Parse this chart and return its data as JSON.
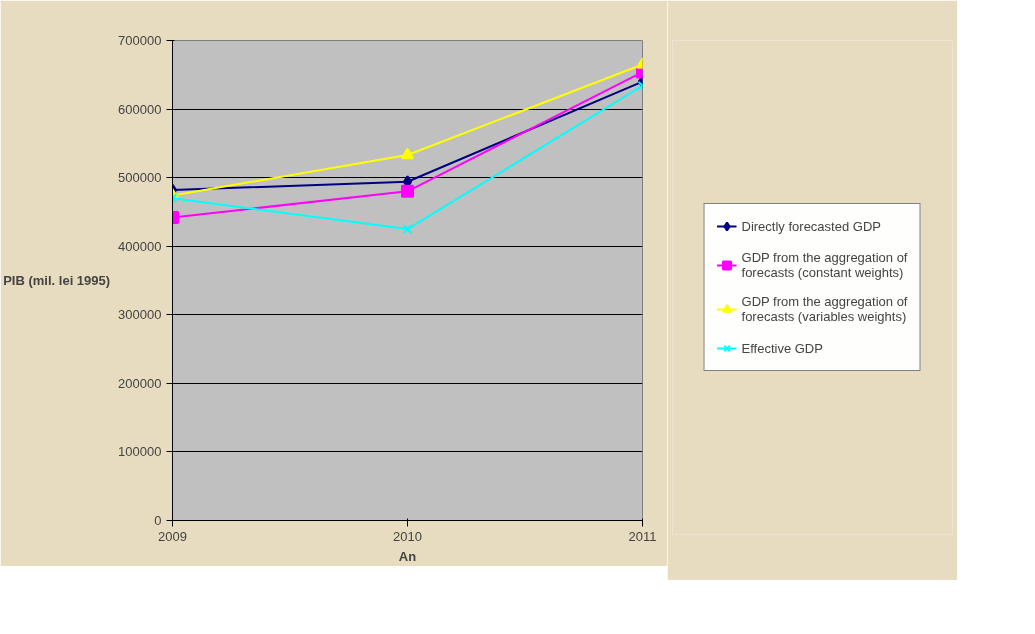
{
  "chart_data": {
    "type": "line",
    "xlabel": "An",
    "ylabel": "PIB (mil. lei 1995)",
    "x": [
      2009,
      2010,
      2011
    ],
    "xlim": [
      2009,
      2011
    ],
    "xticks": [
      2009,
      2010,
      2011
    ],
    "ylim": [
      0,
      700000
    ],
    "yticks": [
      0,
      100000,
      200000,
      300000,
      400000,
      500000,
      600000,
      700000
    ],
    "grid": "y",
    "legend": "right",
    "line_style": "solid",
    "series": [
      {
        "name": "Directly forecasted GDP",
        "color": "#000080",
        "marker": "diamond",
        "values": [
          482000,
          494000,
          640000
        ]
      },
      {
        "name": "GDP from the aggregation of forecasts (constant weights)",
        "color": "#ff00ff",
        "marker": "square",
        "values": [
          442000,
          480000,
          654000
        ]
      },
      {
        "name": "GDP from the aggregation of forecasts (variables weights)",
        "color": "#ffff00",
        "marker": "triangle",
        "values": [
          474000,
          533000,
          665000
        ]
      },
      {
        "name": "Effective GDP",
        "color": "#00ffff",
        "marker": "cross",
        "values": [
          470000,
          425000,
          634000
        ]
      }
    ]
  }
}
